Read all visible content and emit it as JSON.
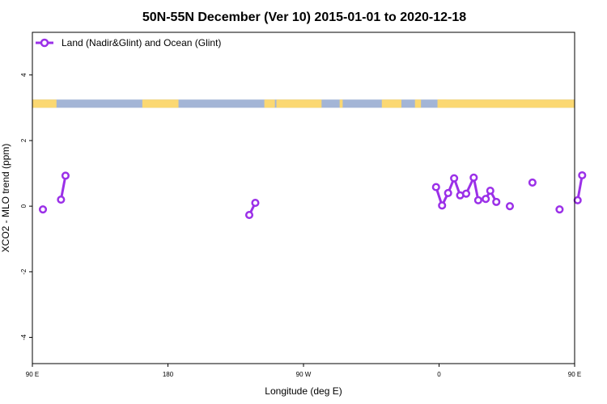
{
  "chart_data": {
    "type": "line",
    "title": "50N-55N December (Ver 10)   2015-01-01 to 2020-12-18",
    "xlabel": "Longitude (deg E)",
    "ylabel": "XCO2 - MLO trend (ppm)",
    "xlim": [
      90,
      450
    ],
    "ylim": [
      -4.8,
      5.3
    ],
    "x_ticks": [
      {
        "value": 90,
        "label": "90 E"
      },
      {
        "value": 180,
        "label": "180"
      },
      {
        "value": 270,
        "label": "90 W"
      },
      {
        "value": 360,
        "label": "0"
      },
      {
        "value": 450,
        "label": "90 E"
      },
      {
        "value": 540,
        "label": "180"
      }
    ],
    "y_ticks": [
      {
        "value": -4,
        "label": "-4"
      },
      {
        "value": -2,
        "label": "-2"
      },
      {
        "value": 0,
        "label": "0"
      },
      {
        "value": 2,
        "label": "2"
      },
      {
        "value": 4,
        "label": "4"
      }
    ],
    "legend": {
      "position": "top-left"
    },
    "series": [
      {
        "name": "Land (Nadir&Glint) and Ocean (Glint)",
        "color": "#9b30e8",
        "segments": [
          [
            [
              97,
              -0.1
            ]
          ],
          [
            [
              109,
              0.2
            ],
            [
              112,
              0.93
            ]
          ],
          [
            [
              234,
              -0.27
            ],
            [
              238,
              0.1
            ]
          ],
          [
            [
              358,
              0.58
            ],
            [
              362,
              0.02
            ],
            [
              366,
              0.4
            ],
            [
              370,
              0.85
            ],
            [
              374,
              0.33
            ],
            [
              378,
              0.38
            ],
            [
              383,
              0.87
            ],
            [
              386,
              0.18
            ],
            [
              391,
              0.22
            ],
            [
              394,
              0.47
            ],
            [
              398,
              0.13
            ]
          ],
          [
            [
              407,
              0.0
            ]
          ],
          [
            [
              422,
              0.72
            ]
          ],
          [
            [
              440,
              -0.1
            ]
          ],
          [
            [
              452,
              0.18
            ],
            [
              455,
              0.94
            ]
          ]
        ]
      }
    ],
    "map_strip": {
      "y_range": [
        3.0,
        3.25
      ],
      "colors": {
        "ocean": "#a3b5d6",
        "land": "#fbd872"
      },
      "land_spans_lon": [
        [
          30,
          106
        ],
        [
          163,
          187
        ],
        [
          244,
          251
        ],
        [
          252,
          282
        ],
        [
          294,
          296
        ],
        [
          322,
          335
        ],
        [
          344,
          348
        ],
        [
          359,
          365
        ],
        [
          359,
          480
        ],
        [
          507,
          512
        ]
      ]
    }
  }
}
